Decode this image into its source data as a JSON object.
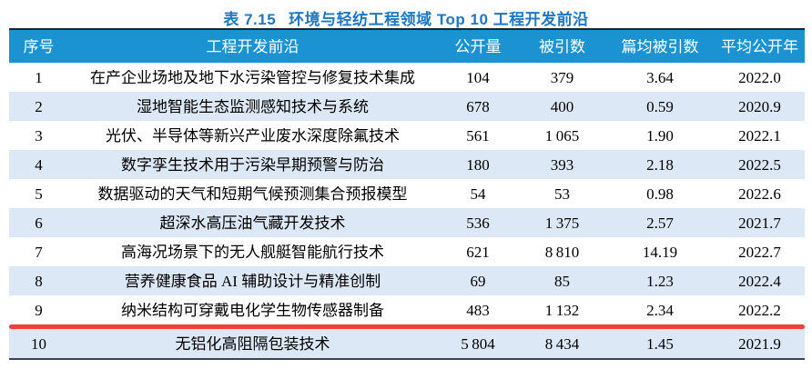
{
  "title": {
    "prefix": "表 7.15",
    "main": "环境与轻纺工程领域 Top 10 工程开发前沿"
  },
  "theme": {
    "header_bg": "#1b93d2",
    "row_alt_bg": "#dce8f5",
    "title_color": "#1c76c2",
    "underline_color": "#f0413f",
    "border_top": "#1f2328",
    "border_bottom": "#3d4350"
  },
  "table": {
    "columns": [
      {
        "key": "rank",
        "label": "序号",
        "class": "c-rank"
      },
      {
        "key": "frontier",
        "label": "工程开发前沿",
        "class": "c-frontier"
      },
      {
        "key": "pub",
        "label": "公开量",
        "class": "c-pub"
      },
      {
        "key": "cited",
        "label": "被引数",
        "class": "c-cited"
      },
      {
        "key": "cpp",
        "label": "篇均被引数",
        "class": "c-cpp"
      },
      {
        "key": "year",
        "label": "平均公开年",
        "class": "c-year"
      }
    ],
    "rows": [
      {
        "rank": "1",
        "frontier": "在产企业场地及地下水污染管控与修复技术集成",
        "pub": "104",
        "cited": "379",
        "cpp": "3.64",
        "year": "2022.0",
        "underlined": false
      },
      {
        "rank": "2",
        "frontier": "湿地智能生态监测感知技术与系统",
        "pub": "678",
        "cited": "400",
        "cpp": "0.59",
        "year": "2020.9",
        "underlined": false
      },
      {
        "rank": "3",
        "frontier": "光伏、半导体等新兴产业废水深度除氟技术",
        "pub": "561",
        "cited": "1 065",
        "cpp": "1.90",
        "year": "2022.1",
        "underlined": false
      },
      {
        "rank": "4",
        "frontier": "数字孪生技术用于污染早期预警与防治",
        "pub": "180",
        "cited": "393",
        "cpp": "2.18",
        "year": "2022.5",
        "underlined": false
      },
      {
        "rank": "5",
        "frontier": "数据驱动的天气和短期气候预测集合预报模型",
        "pub": "54",
        "cited": "53",
        "cpp": "0.98",
        "year": "2022.6",
        "underlined": false
      },
      {
        "rank": "6",
        "frontier": "超深水高压油气藏开发技术",
        "pub": "536",
        "cited": "1 375",
        "cpp": "2.57",
        "year": "2021.7",
        "underlined": false
      },
      {
        "rank": "7",
        "frontier": "高海况场景下的无人舰艇智能航行技术",
        "pub": "621",
        "cited": "8 810",
        "cpp": "14.19",
        "year": "2022.7",
        "underlined": false
      },
      {
        "rank": "8",
        "frontier": "营养健康食品 AI 辅助设计与精准创制",
        "pub": "69",
        "cited": "85",
        "cpp": "1.23",
        "year": "2022.4",
        "underlined": false
      },
      {
        "rank": "9",
        "frontier": "纳米结构可穿戴电化学生物传感器制备",
        "pub": "483",
        "cited": "1 132",
        "cpp": "2.34",
        "year": "2022.2",
        "underlined": true
      },
      {
        "rank": "10",
        "frontier": "无铝化高阻隔包装技术",
        "pub": "5 804",
        "cited": "8 434",
        "cpp": "1.45",
        "year": "2021.9",
        "underlined": false
      }
    ]
  }
}
